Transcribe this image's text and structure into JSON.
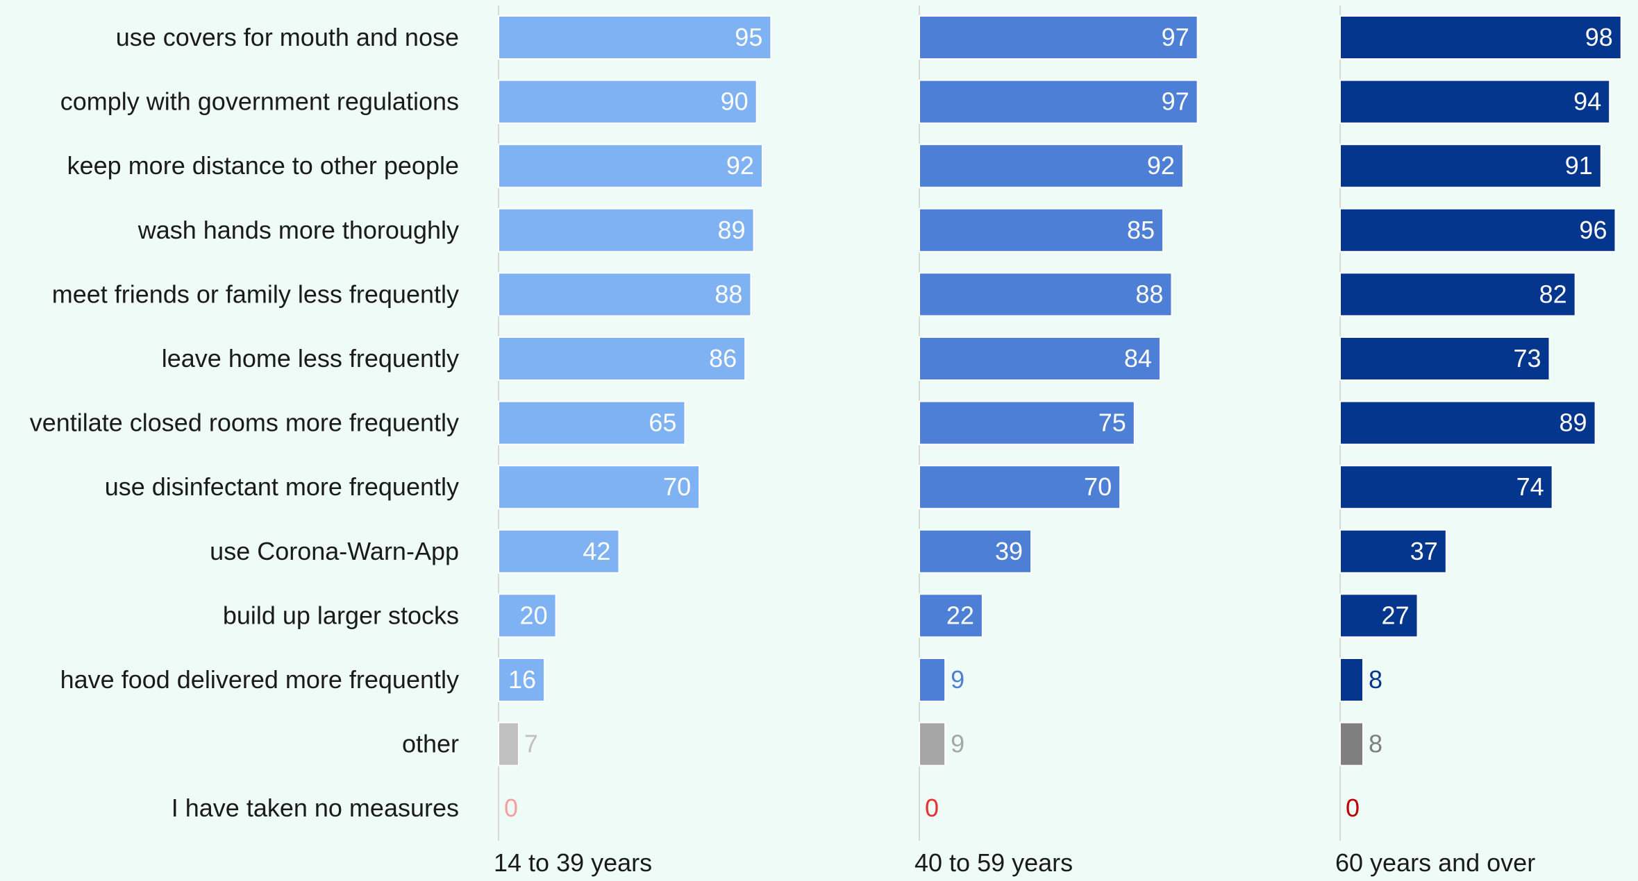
{
  "chart_data": {
    "type": "bar",
    "orientation": "horizontal",
    "title": "",
    "xlabel": "",
    "ylabel": "",
    "xlim": [
      0,
      100
    ],
    "grid": false,
    "legend": "none",
    "categories": [
      "use covers for mouth and nose",
      "comply with government regulations",
      "keep more distance to other people",
      "wash hands more thoroughly",
      "meet friends or family less frequently",
      "leave home less frequently",
      "ventilate closed rooms more frequently",
      "use disinfectant more frequently",
      "use Corona-Warn-App",
      "build up larger stocks",
      "have food delivered more frequently",
      "other",
      "I have taken no measures"
    ],
    "series": [
      {
        "name": "14 to 39 years",
        "values": [
          95,
          90,
          92,
          89,
          88,
          86,
          65,
          70,
          42,
          20,
          16,
          7,
          0
        ],
        "color": "#7fb2f2",
        "other_color": "#c0c0c0",
        "none_color": "#f4a0a0"
      },
      {
        "name": "40 to 59 years",
        "values": [
          97,
          97,
          92,
          85,
          88,
          84,
          75,
          70,
          39,
          22,
          9,
          9,
          0
        ],
        "color": "#4d7fd6",
        "other_color": "#a6a6a6",
        "none_color": "#e8302e"
      },
      {
        "name": "60 years and over",
        "values": [
          98,
          94,
          91,
          96,
          82,
          73,
          89,
          74,
          37,
          27,
          8,
          8,
          0
        ],
        "color": "#05368e",
        "other_color": "#7f7f7f",
        "none_color": "#c00000"
      }
    ]
  }
}
